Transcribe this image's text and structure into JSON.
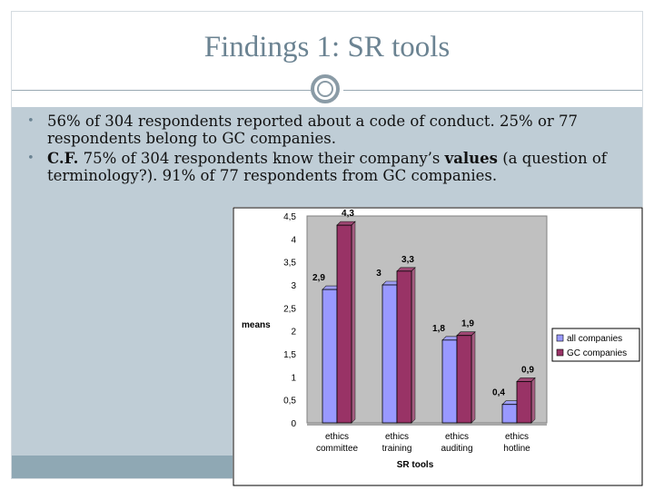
{
  "slide": {
    "title": "Findings 1: SR tools",
    "bullets": [
      {
        "parts": [
          {
            "text": "56% of 304 respondents reported about a code of conduct. 25% or 77 respondents belong to GC companies.",
            "bold": false
          }
        ]
      },
      {
        "parts": [
          {
            "text": "C.F.",
            "bold": true
          },
          {
            "text": " 75% of 304 respondents know their company’s ",
            "bold": false
          },
          {
            "text": "values",
            "bold": true
          },
          {
            "text": " (a question of terminology?). 91% of 77 respondents from GC companies.",
            "bold": false
          }
        ]
      }
    ]
  },
  "colors": {
    "title": "#6b8392",
    "series_all": "#9999ff",
    "series_gc": "#993366"
  },
  "chart_data": {
    "type": "bar",
    "title": "",
    "xlabel": "SR tools",
    "ylabel": "means",
    "ylim": [
      0,
      4.5
    ],
    "yticks": [
      "0",
      "0,5",
      "1",
      "1,5",
      "2",
      "2,5",
      "3",
      "3,5",
      "4",
      "4,5"
    ],
    "categories": [
      [
        "ethics",
        "committee"
      ],
      [
        "ethics",
        "training"
      ],
      [
        "ethics",
        "auditing"
      ],
      [
        "ethics",
        "hotline"
      ]
    ],
    "series": [
      {
        "name": "all companies",
        "values": [
          2.9,
          3.0,
          1.8,
          0.4
        ],
        "labels": [
          "2,9",
          "3",
          "1,8",
          "0,4"
        ]
      },
      {
        "name": "GC companies",
        "values": [
          4.3,
          3.3,
          1.9,
          0.9
        ],
        "labels": [
          "4,3",
          "3,3",
          "1,9",
          "0,9"
        ]
      }
    ],
    "legend": "right",
    "grid": false
  }
}
